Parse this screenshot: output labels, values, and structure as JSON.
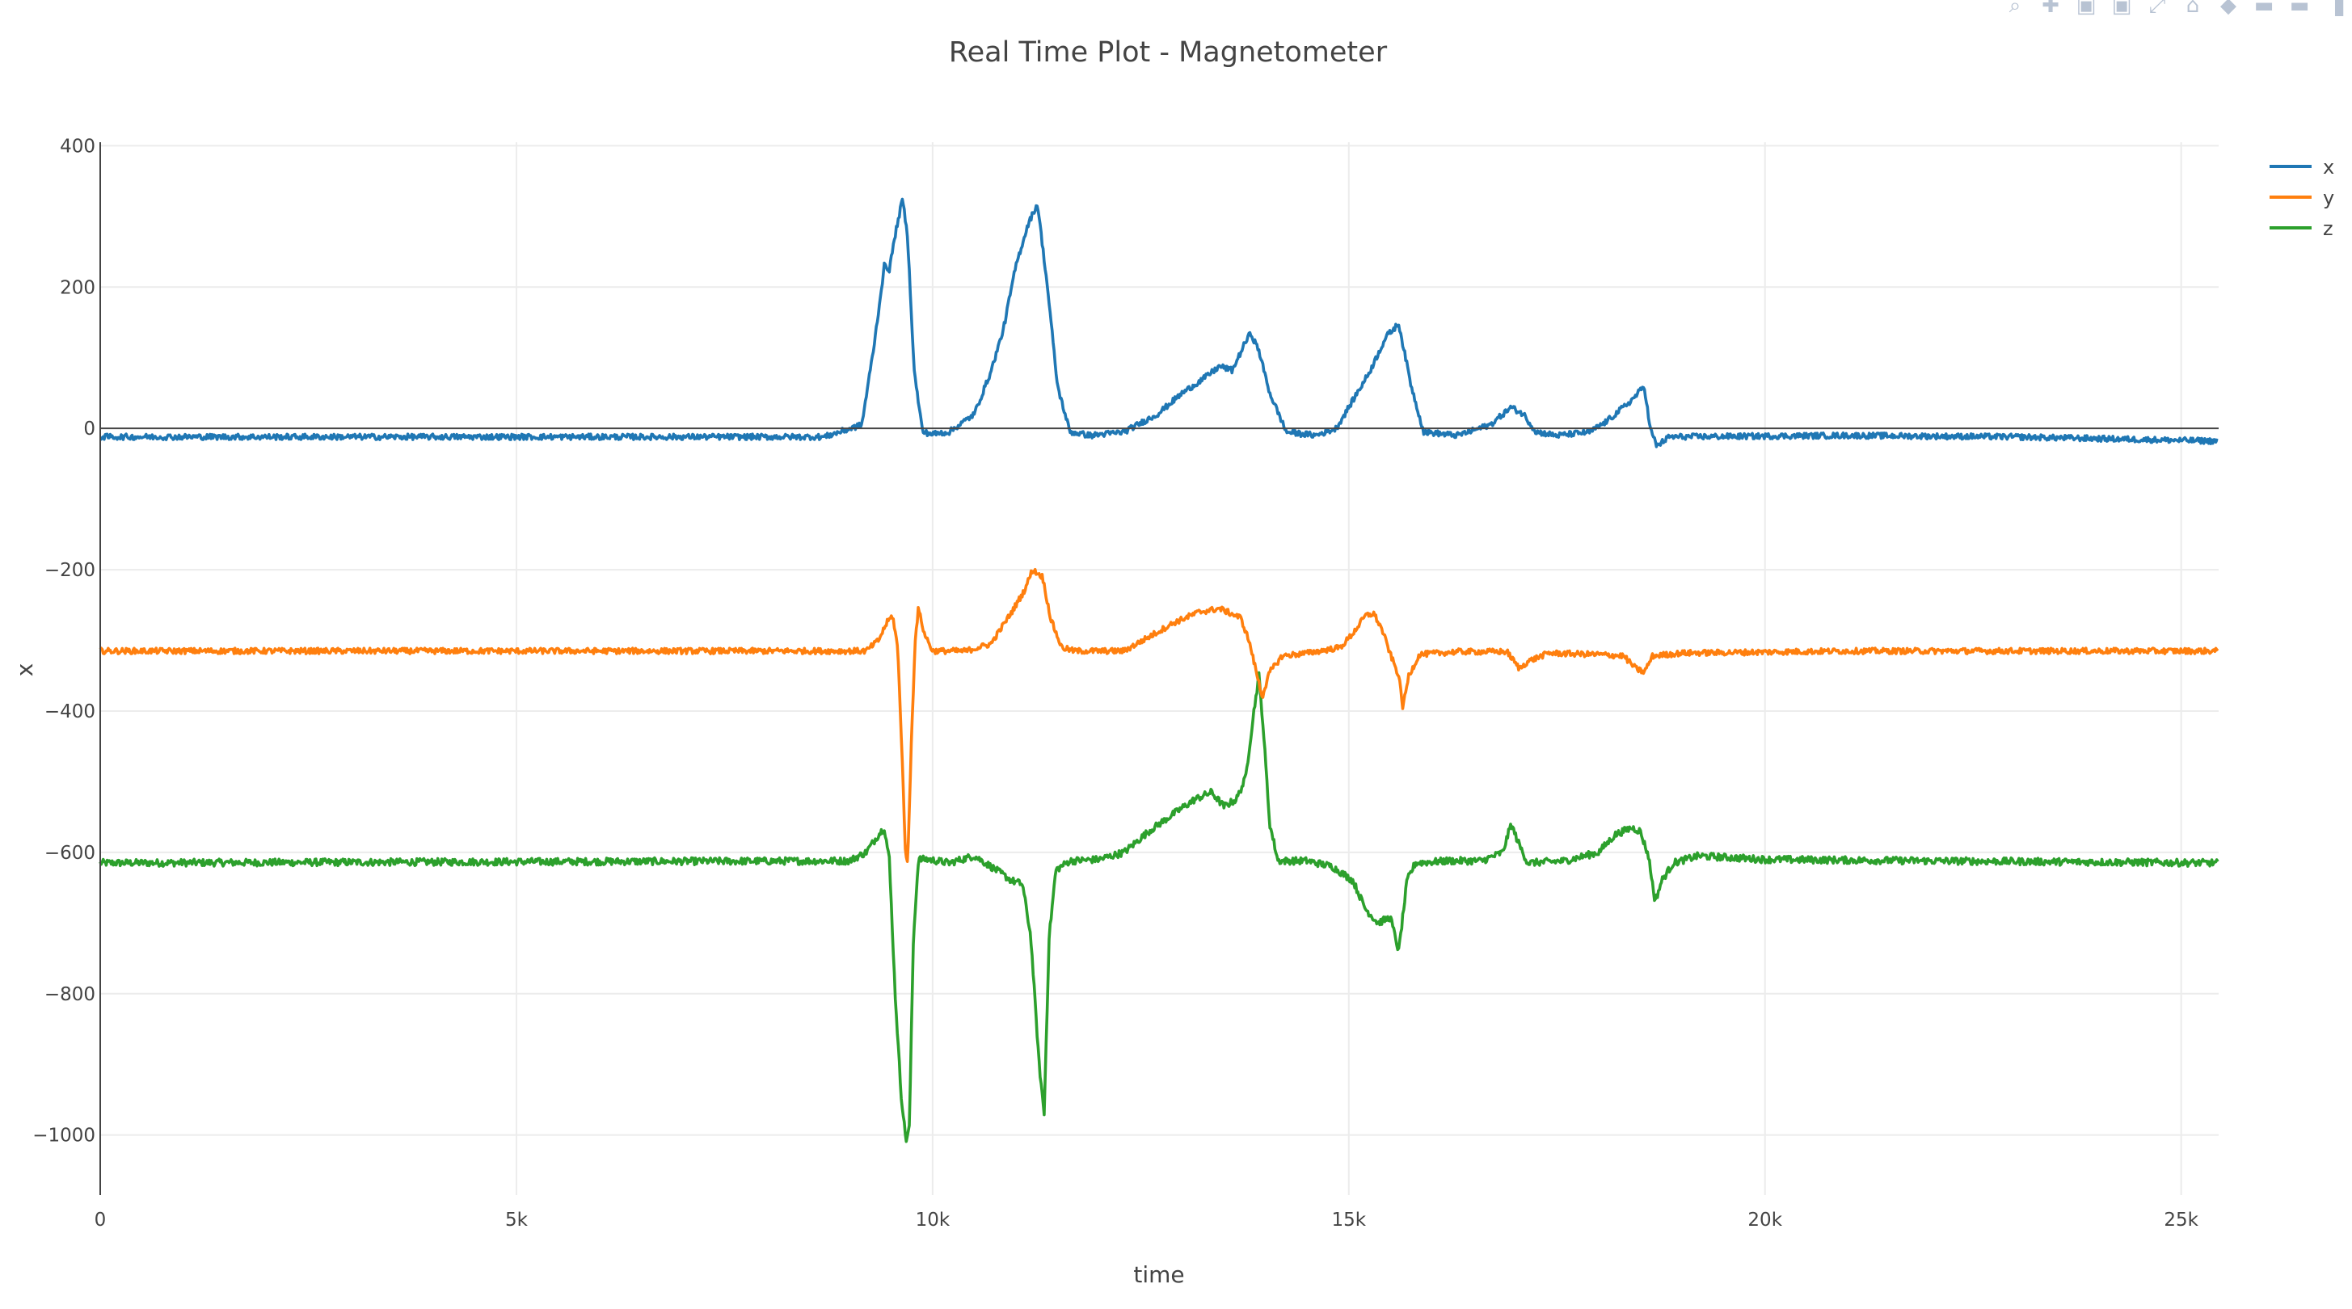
{
  "modebar": {
    "buttons": [
      "zoom-icon",
      "pan-icon",
      "zoom-in-icon",
      "zoom-out-icon",
      "autoscale-icon",
      "reset-axes-icon",
      "spike-lines-icon",
      "hover-closest-icon",
      "hover-compare-icon",
      "plotly-logo-icon"
    ]
  },
  "chart_data": {
    "type": "line",
    "title": "Real Time Plot - Magnetometer",
    "xlabel": "time",
    "ylabel": "x",
    "xlim": [
      0,
      25450
    ],
    "ylim": [
      -1085,
      405
    ],
    "x_ticks": [
      0,
      5000,
      10000,
      15000,
      20000,
      25000
    ],
    "x_tick_labels": [
      "0",
      "5k",
      "10k",
      "15k",
      "20k",
      "25k"
    ],
    "y_ticks": [
      400,
      200,
      0,
      -200,
      -400,
      -600,
      -800,
      -1000
    ],
    "y_tick_labels": [
      "400",
      "200",
      "0",
      "−200",
      "−400",
      "−600",
      "−800",
      "−1000"
    ],
    "grid": true,
    "zero_line": true,
    "legend_position": "top-right",
    "series": [
      {
        "name": "x",
        "color": "#1f77b4",
        "baseline": -12,
        "noise": 4,
        "points": [
          [
            0,
            -12
          ],
          [
            8700,
            -12
          ],
          [
            9150,
            5
          ],
          [
            9300,
            120
          ],
          [
            9420,
            230
          ],
          [
            9480,
            225
          ],
          [
            9560,
            280
          ],
          [
            9640,
            325
          ],
          [
            9700,
            270
          ],
          [
            9780,
            80
          ],
          [
            9880,
            -5
          ],
          [
            10000,
            -8
          ],
          [
            10200,
            -5
          ],
          [
            10500,
            20
          ],
          [
            10700,
            80
          ],
          [
            10850,
            140
          ],
          [
            11000,
            230
          ],
          [
            11150,
            290
          ],
          [
            11260,
            318
          ],
          [
            11380,
            200
          ],
          [
            11500,
            60
          ],
          [
            11650,
            -5
          ],
          [
            11900,
            -10
          ],
          [
            12300,
            -5
          ],
          [
            12700,
            20
          ],
          [
            13000,
            50
          ],
          [
            13250,
            70
          ],
          [
            13450,
            88
          ],
          [
            13600,
            82
          ],
          [
            13750,
            120
          ],
          [
            13820,
            135
          ],
          [
            13920,
            110
          ],
          [
            14050,
            50
          ],
          [
            14250,
            -5
          ],
          [
            14600,
            -10
          ],
          [
            14850,
            0
          ],
          [
            15050,
            40
          ],
          [
            15250,
            80
          ],
          [
            15450,
            130
          ],
          [
            15600,
            148
          ],
          [
            15750,
            60
          ],
          [
            15900,
            -5
          ],
          [
            16300,
            -10
          ],
          [
            16700,
            5
          ],
          [
            16950,
            30
          ],
          [
            17100,
            20
          ],
          [
            17250,
            -5
          ],
          [
            17500,
            -10
          ],
          [
            17900,
            -5
          ],
          [
            18100,
            10
          ],
          [
            18400,
            40
          ],
          [
            18550,
            60
          ],
          [
            18620,
            0
          ],
          [
            18700,
            -25
          ],
          [
            18850,
            -12
          ],
          [
            21000,
            -10
          ],
          [
            23000,
            -12
          ],
          [
            25450,
            -18
          ]
        ]
      },
      {
        "name": "y",
        "color": "#ff7f0e",
        "baseline": -315,
        "noise": 4,
        "points": [
          [
            0,
            -315
          ],
          [
            9200,
            -315
          ],
          [
            9350,
            -300
          ],
          [
            9450,
            -275
          ],
          [
            9520,
            -265
          ],
          [
            9580,
            -310
          ],
          [
            9630,
            -450
          ],
          [
            9670,
            -590
          ],
          [
            9700,
            -620
          ],
          [
            9740,
            -460
          ],
          [
            9790,
            -300
          ],
          [
            9830,
            -255
          ],
          [
            9900,
            -290
          ],
          [
            10000,
            -315
          ],
          [
            10400,
            -315
          ],
          [
            10700,
            -305
          ],
          [
            10950,
            -260
          ],
          [
            11100,
            -230
          ],
          [
            11200,
            -200
          ],
          [
            11320,
            -210
          ],
          [
            11420,
            -270
          ],
          [
            11550,
            -310
          ],
          [
            11700,
            -315
          ],
          [
            12300,
            -315
          ],
          [
            12600,
            -295
          ],
          [
            12900,
            -275
          ],
          [
            13200,
            -260
          ],
          [
            13450,
            -255
          ],
          [
            13700,
            -268
          ],
          [
            13800,
            -300
          ],
          [
            13880,
            -340
          ],
          [
            13960,
            -380
          ],
          [
            14050,
            -345
          ],
          [
            14200,
            -322
          ],
          [
            14500,
            -318
          ],
          [
            14900,
            -310
          ],
          [
            15050,
            -290
          ],
          [
            15200,
            -265
          ],
          [
            15300,
            -262
          ],
          [
            15400,
            -285
          ],
          [
            15500,
            -320
          ],
          [
            15600,
            -350
          ],
          [
            15650,
            -395
          ],
          [
            15720,
            -350
          ],
          [
            15850,
            -320
          ],
          [
            16300,
            -316
          ],
          [
            16900,
            -316
          ],
          [
            17050,
            -340
          ],
          [
            17150,
            -330
          ],
          [
            17400,
            -318
          ],
          [
            18000,
            -320
          ],
          [
            18300,
            -322
          ],
          [
            18450,
            -340
          ],
          [
            18550,
            -345
          ],
          [
            18650,
            -322
          ],
          [
            19000,
            -318
          ],
          [
            21000,
            -315
          ],
          [
            25450,
            -315
          ]
        ]
      },
      {
        "name": "z",
        "color": "#2ca02c",
        "baseline": -612,
        "noise": 5,
        "points": [
          [
            0,
            -615
          ],
          [
            9000,
            -612
          ],
          [
            9200,
            -600
          ],
          [
            9350,
            -575
          ],
          [
            9420,
            -565
          ],
          [
            9480,
            -610
          ],
          [
            9550,
            -800
          ],
          [
            9620,
            -940
          ],
          [
            9680,
            -1008
          ],
          [
            9720,
            -990
          ],
          [
            9770,
            -720
          ],
          [
            9830,
            -610
          ],
          [
            9950,
            -610
          ],
          [
            10200,
            -615
          ],
          [
            10500,
            -605
          ],
          [
            10700,
            -620
          ],
          [
            10950,
            -640
          ],
          [
            11080,
            -645
          ],
          [
            11180,
            -720
          ],
          [
            11280,
            -900
          ],
          [
            11340,
            -970
          ],
          [
            11400,
            -720
          ],
          [
            11480,
            -625
          ],
          [
            11650,
            -612
          ],
          [
            12000,
            -610
          ],
          [
            12300,
            -600
          ],
          [
            12600,
            -570
          ],
          [
            12900,
            -545
          ],
          [
            13150,
            -525
          ],
          [
            13350,
            -515
          ],
          [
            13500,
            -535
          ],
          [
            13650,
            -525
          ],
          [
            13760,
            -495
          ],
          [
            13860,
            -400
          ],
          [
            13920,
            -350
          ],
          [
            13970,
            -420
          ],
          [
            14050,
            -560
          ],
          [
            14150,
            -612
          ],
          [
            14500,
            -612
          ],
          [
            14800,
            -620
          ],
          [
            15050,
            -640
          ],
          [
            15200,
            -680
          ],
          [
            15350,
            -700
          ],
          [
            15500,
            -692
          ],
          [
            15600,
            -740
          ],
          [
            15700,
            -640
          ],
          [
            15800,
            -615
          ],
          [
            16200,
            -612
          ],
          [
            16600,
            -612
          ],
          [
            16850,
            -600
          ],
          [
            16950,
            -560
          ],
          [
            17050,
            -590
          ],
          [
            17150,
            -615
          ],
          [
            17600,
            -612
          ],
          [
            18000,
            -600
          ],
          [
            18200,
            -575
          ],
          [
            18400,
            -565
          ],
          [
            18500,
            -570
          ],
          [
            18600,
            -605
          ],
          [
            18680,
            -670
          ],
          [
            18760,
            -640
          ],
          [
            18900,
            -615
          ],
          [
            19200,
            -605
          ],
          [
            20000,
            -610
          ],
          [
            22000,
            -612
          ],
          [
            25450,
            -615
          ]
        ]
      }
    ]
  }
}
